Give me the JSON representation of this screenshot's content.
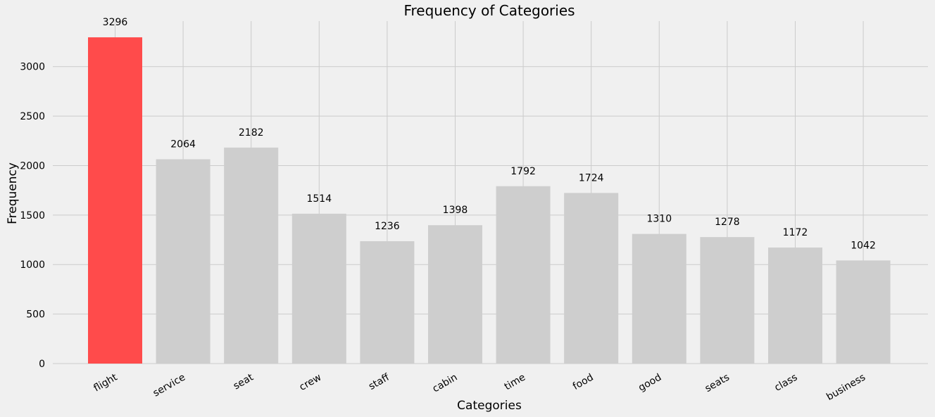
{
  "chart_data": {
    "type": "bar",
    "title": "Frequency of Categories",
    "xlabel": "Categories",
    "ylabel": "Frequency",
    "categories": [
      "flight",
      "service",
      "seat",
      "crew",
      "staff",
      "cabin",
      "time",
      "food",
      "good",
      "seats",
      "class",
      "business"
    ],
    "values": [
      3296,
      2064,
      2182,
      1514,
      1236,
      1398,
      1792,
      1724,
      1310,
      1278,
      1172,
      1042
    ],
    "highlight_index": 0,
    "yticks": [
      0,
      500,
      1000,
      1500,
      2000,
      2500,
      3000
    ],
    "ylim": [
      0,
      3460
    ],
    "grid": true,
    "colors": {
      "highlight": "#ff4b4b",
      "bar": "#cecece",
      "grid": "#cbcbcb",
      "background": "#f0f0f0"
    }
  }
}
